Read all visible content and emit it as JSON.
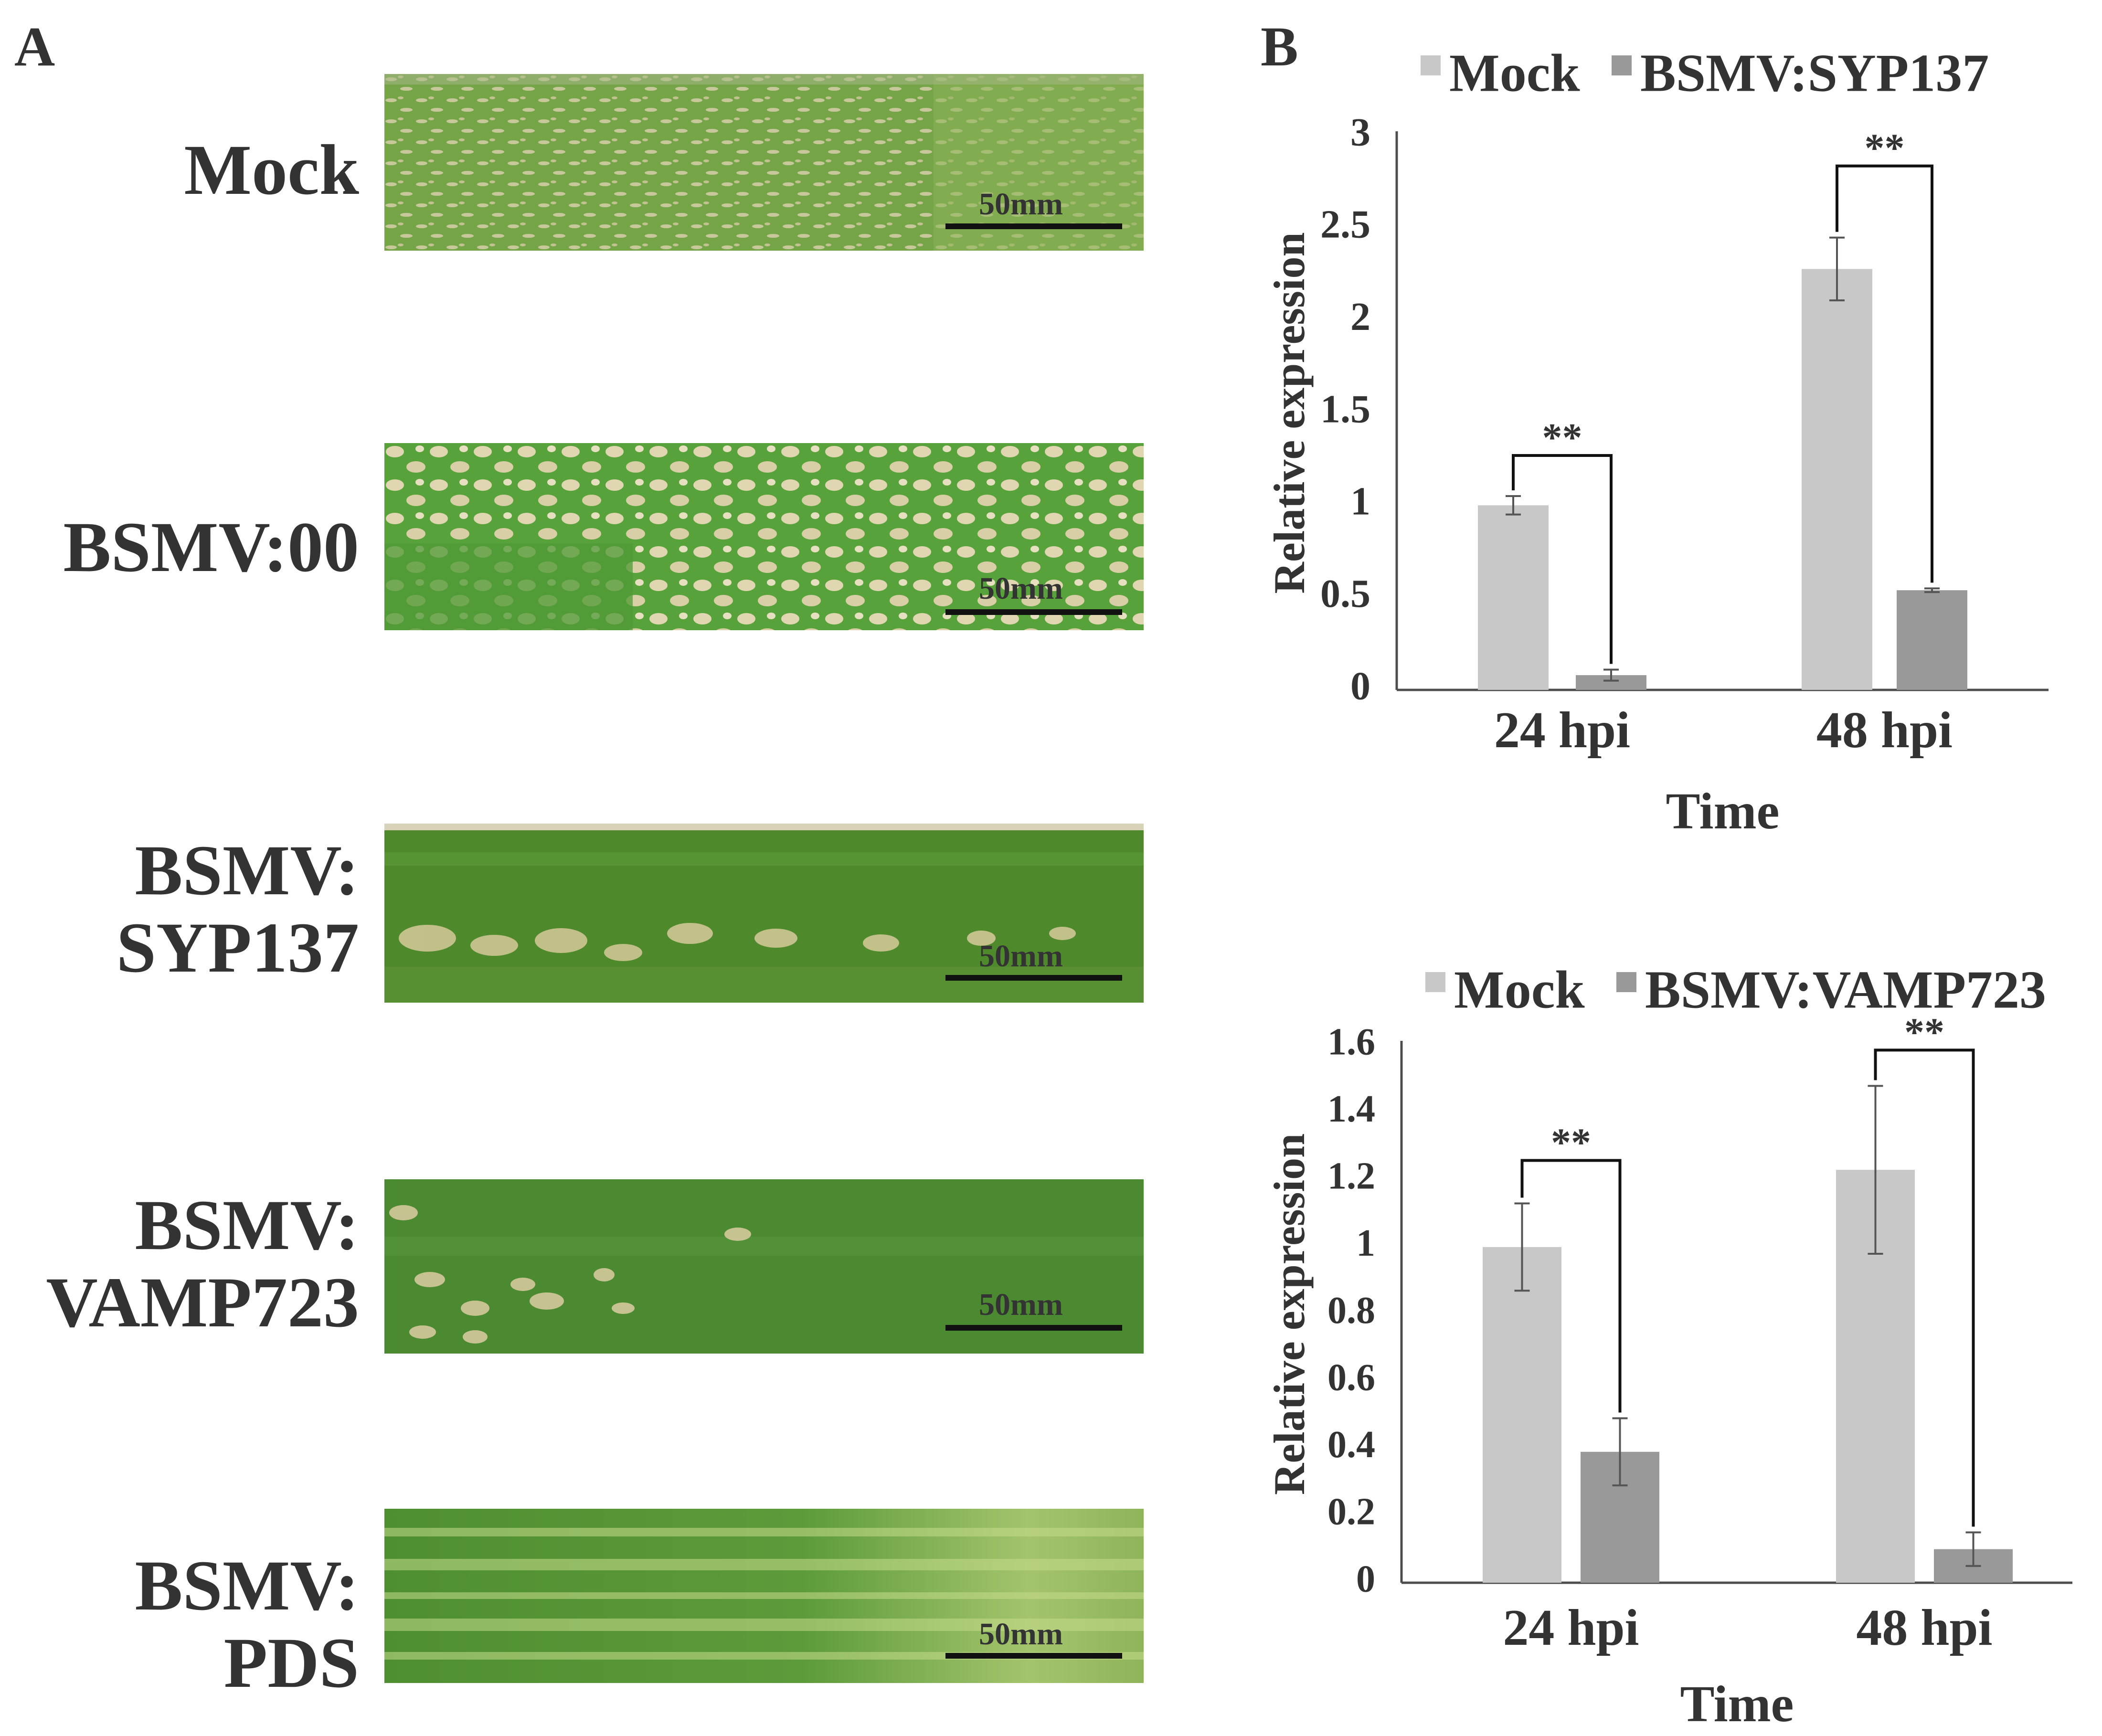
{
  "panel_labels": {
    "a": "A",
    "b": "B"
  },
  "panel_a": {
    "scale_label": "50mm",
    "rows": [
      {
        "label_lines": [
          "Mock"
        ],
        "leaf": "fine-lesion-texture"
      },
      {
        "label_lines": [
          "BSMV:00"
        ],
        "leaf": "dense-lesion-texture"
      },
      {
        "label_lines": [
          "BSMV:",
          "SYP137"
        ],
        "leaf": "sparse-lesion-texture"
      },
      {
        "label_lines": [
          "BSMV:",
          "VAMP723"
        ],
        "leaf": "sparse-lesion-texture"
      },
      {
        "label_lines": [
          "BSMV:",
          "PDS"
        ],
        "leaf": "photobleached-striped"
      }
    ]
  },
  "colors": {
    "mock": "#c8c8c8",
    "treated": "#999999",
    "leaf_green": "#5f9a3c",
    "lesion": "#d9cfa6"
  },
  "chart_data": [
    {
      "type": "bar",
      "categories": [
        "24 hpi",
        "48 hpi"
      ],
      "series": [
        {
          "name": "Mock",
          "values": [
            1.0,
            2.28
          ],
          "errors": [
            0.05,
            0.17
          ]
        },
        {
          "name": "BSMV:SYP137",
          "values": [
            0.08,
            0.54
          ],
          "errors": [
            0.03,
            0.01
          ]
        }
      ],
      "significance": [
        "**",
        "**"
      ],
      "xlabel": "Time",
      "ylabel": "Relative expression",
      "ylim": [
        0,
        3
      ],
      "yticks": [
        "0",
        "0.5",
        "1",
        "1.5",
        "2",
        "2.5",
        "3"
      ],
      "legend": "top",
      "grid": false
    },
    {
      "type": "bar",
      "categories": [
        "24 hpi",
        "48 hpi"
      ],
      "series": [
        {
          "name": "Mock",
          "values": [
            1.0,
            1.23
          ],
          "errors": [
            0.13,
            0.25
          ]
        },
        {
          "name": "BSMV:VAMP723",
          "values": [
            0.39,
            0.1
          ],
          "errors": [
            0.1,
            0.05
          ]
        }
      ],
      "significance": [
        "**",
        "**"
      ],
      "xlabel": "Time",
      "ylabel": "Relative expression",
      "ylim": [
        0,
        1.6
      ],
      "yticks": [
        "0",
        "0.2",
        "0.4",
        "0.6",
        "0.8",
        "1",
        "1.2",
        "1.4",
        "1.6"
      ],
      "legend": "top",
      "grid": false
    }
  ]
}
